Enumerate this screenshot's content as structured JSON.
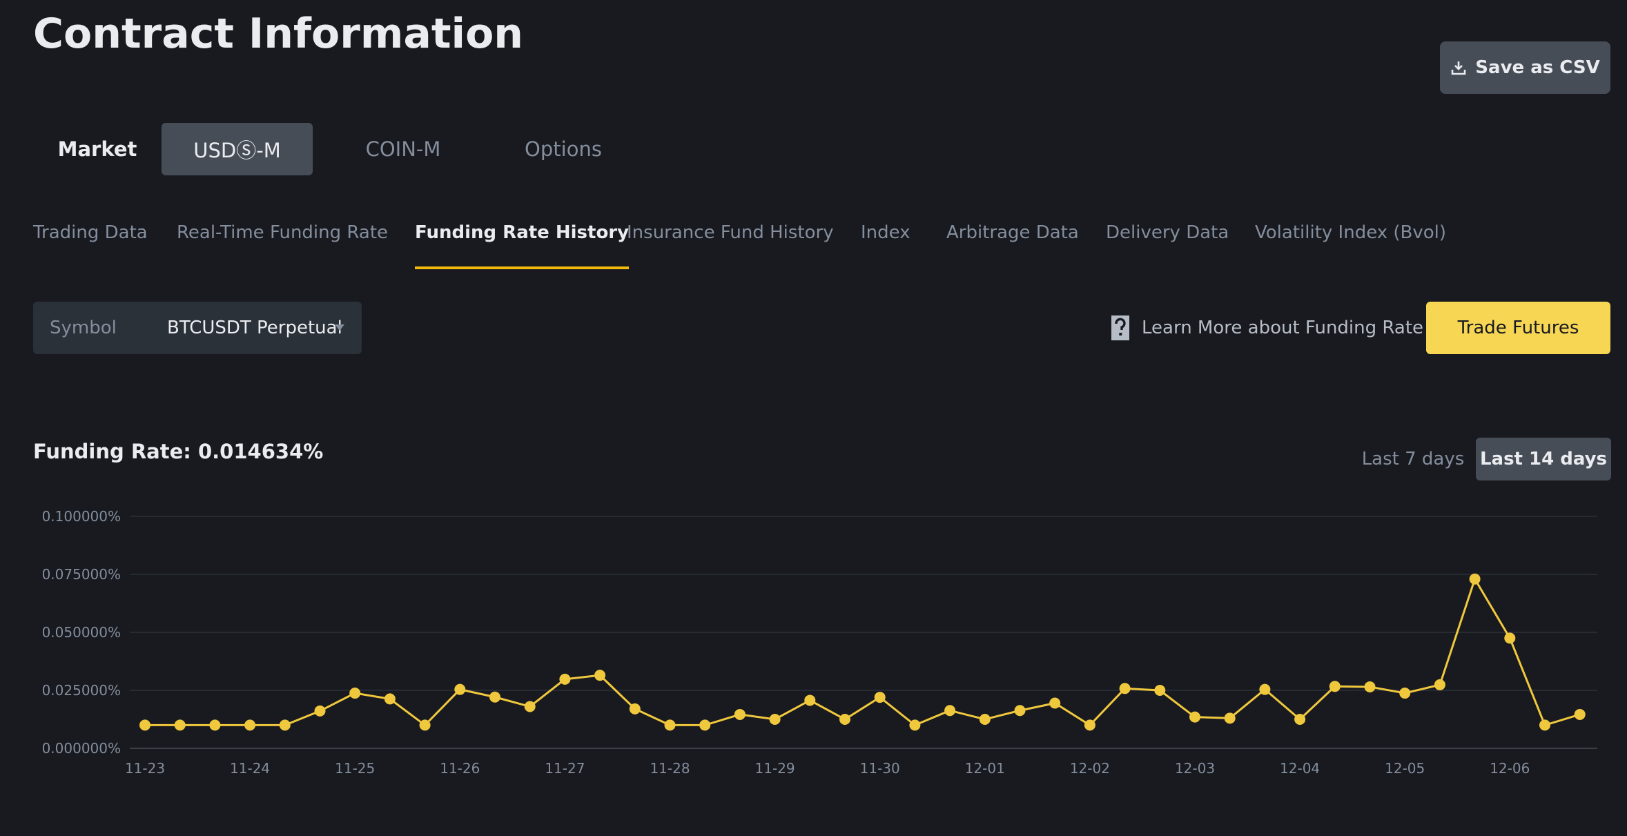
{
  "page": {
    "title": "Contract Information"
  },
  "toolbar": {
    "save_csv_label": "Save as CSV",
    "save_icon": "download-icon"
  },
  "market_tabs": [
    {
      "label": "Market",
      "state": "plain"
    },
    {
      "label": "USDⓈ-M",
      "state": "selected"
    },
    {
      "label": "COIN-M",
      "state": "inactive"
    },
    {
      "label": "Options",
      "state": "inactive"
    }
  ],
  "sub_tabs": [
    {
      "label": "Trading Data"
    },
    {
      "label": "Real-Time Funding Rate"
    },
    {
      "label": "Funding Rate History",
      "active": true
    },
    {
      "label": "Insurance Fund History"
    },
    {
      "label": "Index"
    },
    {
      "label": "Arbitrage Data"
    },
    {
      "label": "Delivery Data"
    },
    {
      "label": "Volatility Index (Bvol)"
    }
  ],
  "symbol": {
    "label": "Symbol",
    "value": "BTCUSDT Perpetual"
  },
  "learn_more": {
    "label": "Learn More about Funding Rate",
    "icon": "help-doc-icon"
  },
  "trade_button": {
    "label": "Trade Futures"
  },
  "funding_rate": {
    "text": "Funding Rate: 0.014634%"
  },
  "periods": {
    "last7": "Last 7 days",
    "last14": "Last 14 days",
    "selected": "last14"
  },
  "colors": {
    "accent": "#f0b90b",
    "line": "#f0c83d",
    "background": "#181a20"
  },
  "chart_data": {
    "type": "line",
    "title": "",
    "xlabel": "",
    "ylabel": "",
    "ylim": [
      0,
      0.1
    ],
    "y_ticks": [
      "0.000000%",
      "0.025000%",
      "0.050000%",
      "0.075000%",
      "0.100000%"
    ],
    "x_ticks": [
      "11-23",
      "11-24",
      "11-25",
      "11-26",
      "11-27",
      "11-28",
      "11-29",
      "11-30",
      "12-01",
      "12-02",
      "12-03",
      "12-04",
      "12-05",
      "12-06"
    ],
    "grid": true,
    "points_per_day": 3,
    "series": [
      {
        "values": [
          0.01,
          0.01,
          0.01,
          0.01,
          0.01,
          0.0161,
          0.0238,
          0.0213,
          0.01,
          0.0254,
          0.0221,
          0.018,
          0.0298,
          0.0315,
          0.017,
          0.01,
          0.01,
          0.0146,
          0.0125,
          0.0207,
          0.0125,
          0.022,
          0.01,
          0.0163,
          0.0125,
          0.0163,
          0.0195,
          0.01,
          0.0258,
          0.025,
          0.0135,
          0.013,
          0.0254,
          0.0125,
          0.0267,
          0.0265,
          0.0238,
          0.0274,
          0.073,
          0.0475,
          0.01,
          0.0146
        ]
      }
    ]
  }
}
